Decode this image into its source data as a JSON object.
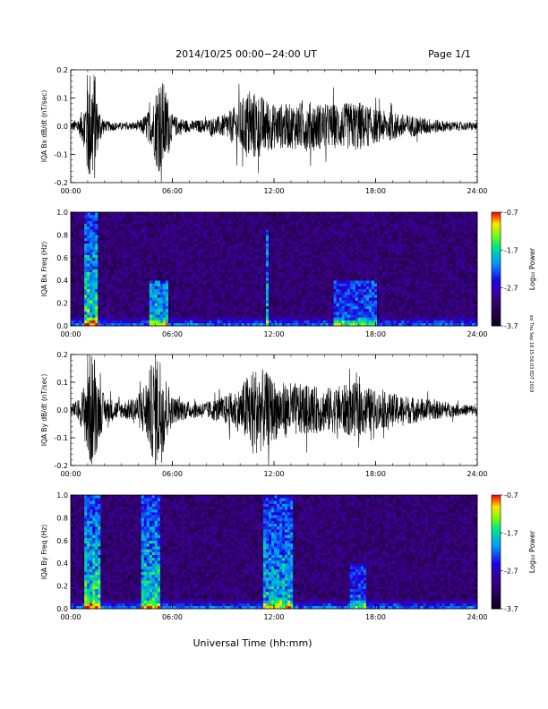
{
  "header": {
    "title": "2014/10/25  00:00−24:00 UT",
    "page": "Page 1/1"
  },
  "footer": {
    "xtitle": "Universal Time (hh:mm)"
  },
  "side_note": "ssl Thu Sep 18 15:56:03 EDT 2019",
  "colorbar": {
    "title": "Log₁₀ Power",
    "ticks": [
      "-0.7",
      "-1.7",
      "-2.7",
      "-3.7"
    ],
    "tick_values": [
      -0.7,
      -1.7,
      -2.7,
      -3.7
    ],
    "range": [
      -3.7,
      -0.7
    ]
  },
  "chart_data": [
    {
      "type": "line",
      "ylabel": "IQA Bx dB/dt (nT/sec)",
      "xlim": [
        "00:00",
        "24:00"
      ],
      "xticks": [
        "00:00",
        "06:00",
        "12:00",
        "18:00",
        "24:00"
      ],
      "ylim": [
        -0.2,
        0.2
      ],
      "yticks": [
        "-0.2",
        "-0.1",
        "0.0",
        "0.1",
        "0.2"
      ],
      "ytick_values": [
        -0.2,
        -0.1,
        0.0,
        0.1,
        0.2
      ],
      "series": [
        {
          "x_hours": [
            0,
            0.5,
            0.8,
            1.0,
            1.2,
            1.4,
            1.6,
            2.0,
            3.0,
            4.0,
            4.8,
            5.1,
            5.4,
            5.7,
            6.0,
            7.0,
            8.0,
            9.0,
            9.5,
            10.0,
            10.5,
            11.0,
            11.5,
            12.0,
            13.0,
            14.0,
            15.0,
            16.0,
            17.0,
            18.0,
            19.0,
            20.0,
            21.0,
            22.0,
            23.0,
            24.0
          ],
          "amplitude": [
            0.015,
            0.03,
            0.08,
            0.21,
            0.21,
            0.21,
            0.08,
            0.02,
            0.012,
            0.015,
            0.07,
            0.16,
            0.17,
            0.12,
            0.04,
            0.02,
            0.025,
            0.04,
            0.06,
            0.09,
            0.13,
            0.12,
            0.1,
            0.08,
            0.08,
            0.09,
            0.08,
            0.08,
            0.09,
            0.06,
            0.05,
            0.04,
            0.03,
            0.02,
            0.015,
            0.015
          ]
        }
      ]
    },
    {
      "type": "heatmap",
      "ylabel": "IQA Bx Freq (Hz)",
      "xlim": [
        "00:00",
        "24:00"
      ],
      "xticks": [
        "00:00",
        "06:00",
        "12:00",
        "18:00",
        "24:00"
      ],
      "ylim": [
        0.0,
        1.0
      ],
      "yticks": [
        "0.0",
        "0.2",
        "0.4",
        "0.6",
        "0.8",
        "1.0"
      ],
      "ytick_values": [
        0.0,
        0.2,
        0.4,
        0.6,
        0.8,
        1.0
      ],
      "bands": [
        {
          "x_hours": [
            0.8,
            1.6
          ],
          "top_hz": 1.0,
          "strength": 0.65
        },
        {
          "x_hours": [
            4.6,
            5.8
          ],
          "top_hz": 0.4,
          "strength": 0.5
        },
        {
          "x_hours": [
            11.5,
            11.7
          ],
          "top_hz": 0.85,
          "strength": 0.55
        },
        {
          "x_hours": [
            15.5,
            18.0
          ],
          "top_hz": 0.4,
          "strength": 0.35
        }
      ]
    },
    {
      "type": "line",
      "ylabel": "IQA By dB/dt (nT/sec)",
      "xlim": [
        "00:00",
        "24:00"
      ],
      "xticks": [
        "00:00",
        "06:00",
        "12:00",
        "18:00",
        "24:00"
      ],
      "ylim": [
        -0.2,
        0.2
      ],
      "yticks": [
        "-0.2",
        "-0.1",
        "0.0",
        "0.1",
        "0.2"
      ],
      "ytick_values": [
        -0.2,
        -0.1,
        0.0,
        0.1,
        0.2
      ],
      "series": [
        {
          "x_hours": [
            0,
            0.5,
            0.8,
            1.0,
            1.2,
            1.4,
            1.6,
            2.0,
            3.0,
            3.5,
            4.0,
            4.5,
            5.0,
            5.3,
            5.6,
            6.0,
            7.0,
            8.0,
            9.0,
            10.0,
            10.5,
            11.0,
            11.5,
            12.0,
            12.5,
            13.0,
            14.0,
            15.0,
            16.0,
            17.0,
            18.0,
            19.0,
            20.0,
            21.0,
            22.0,
            23.0,
            24.0
          ],
          "amplitude": [
            0.02,
            0.04,
            0.1,
            0.21,
            0.21,
            0.21,
            0.12,
            0.05,
            0.03,
            0.04,
            0.06,
            0.12,
            0.21,
            0.21,
            0.13,
            0.05,
            0.03,
            0.03,
            0.05,
            0.08,
            0.14,
            0.16,
            0.14,
            0.11,
            0.1,
            0.1,
            0.09,
            0.08,
            0.09,
            0.1,
            0.07,
            0.06,
            0.05,
            0.04,
            0.03,
            0.02,
            0.02
          ]
        }
      ]
    },
    {
      "type": "heatmap",
      "ylabel": "IQA By Freq (Hz)",
      "xlim": [
        "00:00",
        "24:00"
      ],
      "xticks": [
        "00:00",
        "06:00",
        "12:00",
        "18:00",
        "24:00"
      ],
      "ylim": [
        0.0,
        1.0
      ],
      "yticks": [
        "0.0",
        "0.2",
        "0.4",
        "0.6",
        "0.8",
        "1.0"
      ],
      "ytick_values": [
        0.0,
        0.2,
        0.4,
        0.6,
        0.8,
        1.0
      ],
      "bands": [
        {
          "x_hours": [
            0.8,
            1.7
          ],
          "top_hz": 1.0,
          "strength": 0.65
        },
        {
          "x_hours": [
            4.1,
            5.3
          ],
          "top_hz": 1.0,
          "strength": 0.6
        },
        {
          "x_hours": [
            7.3,
            7.4
          ],
          "top_hz": 1.0,
          "strength": 0.4
        },
        {
          "x_hours": [
            11.4,
            13.2
          ],
          "top_hz": 1.0,
          "strength": 0.55
        },
        {
          "x_hours": [
            16.5,
            17.5
          ],
          "top_hz": 0.4,
          "strength": 0.35
        }
      ]
    }
  ]
}
